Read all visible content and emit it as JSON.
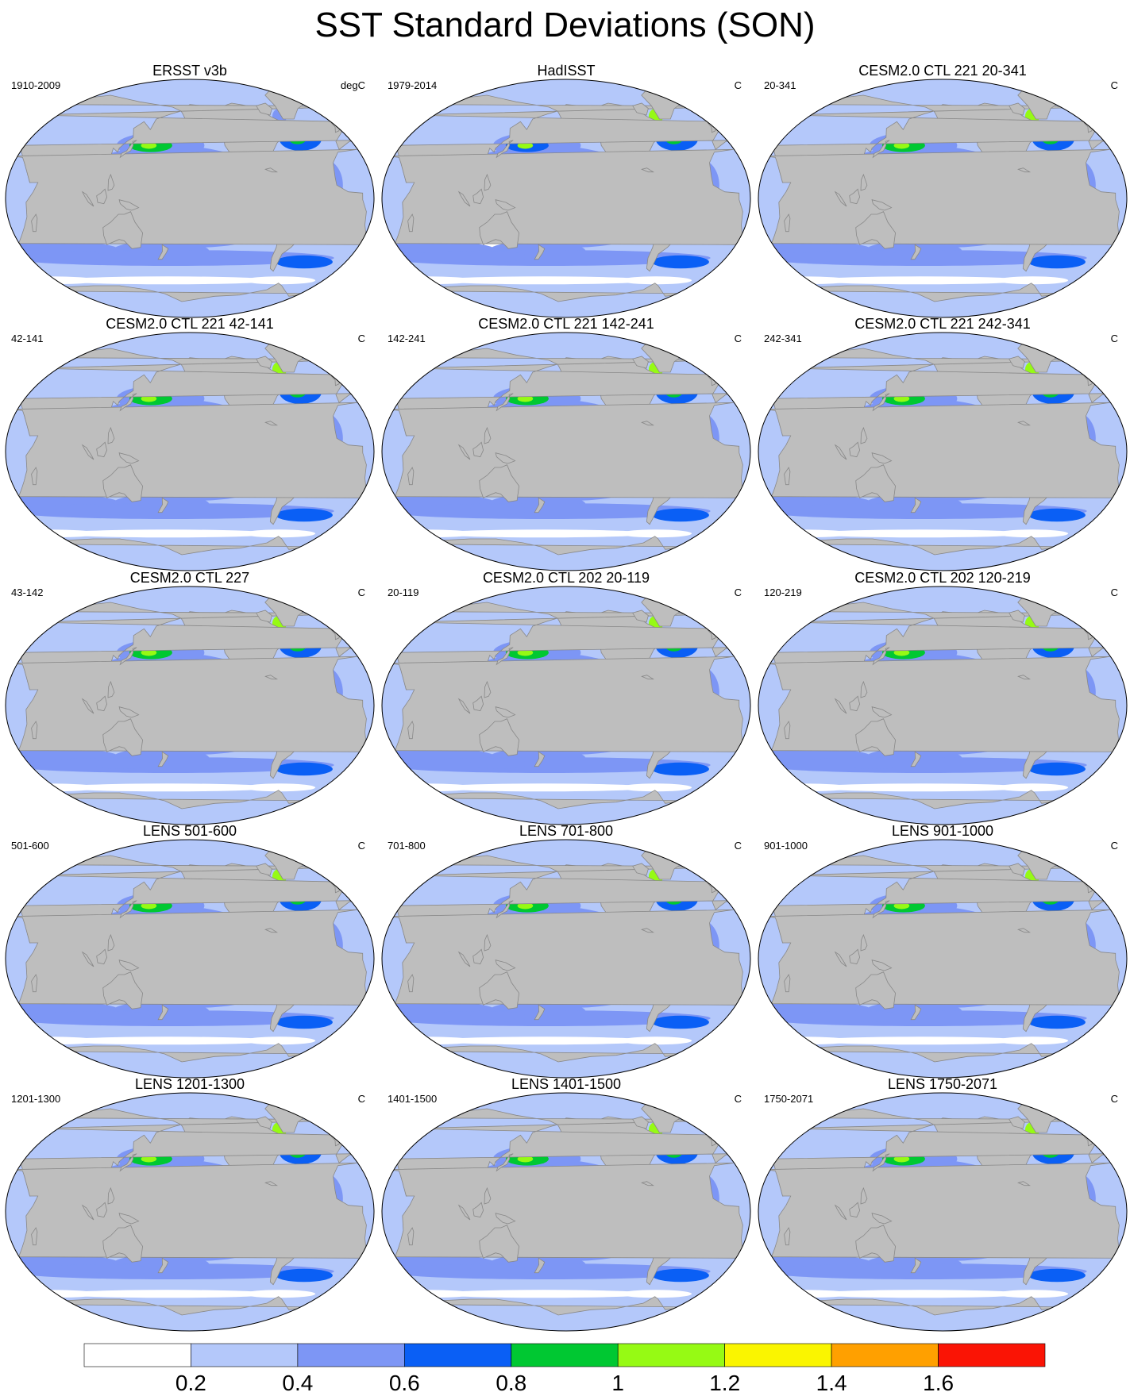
{
  "title": "SST Standard Deviations (SON)",
  "units_note": "degC",
  "panels": [
    {
      "title": "ERSST v3b",
      "left": "1910-2009",
      "right": "degC",
      "variant": "obs1",
      "amp": 0.9
    },
    {
      "title": "HadISST",
      "left": "1979-2014",
      "right": "C",
      "variant": "obs2",
      "amp": 0.85
    },
    {
      "title": "CESM2.0 CTL 221 20-341",
      "left": "20-341",
      "right": "C",
      "variant": "model",
      "amp": 1.55
    },
    {
      "title": "CESM2.0 CTL 221 42-141",
      "left": "42-141",
      "right": "C",
      "variant": "model",
      "amp": 1.6
    },
    {
      "title": "CESM2.0 CTL 221 142-241",
      "left": "142-241",
      "right": "C",
      "variant": "model",
      "amp": 1.65
    },
    {
      "title": "CESM2.0 CTL 221 242-341",
      "left": "242-341",
      "right": "C",
      "variant": "model",
      "amp": 1.4
    },
    {
      "title": "CESM2.0 CTL 227",
      "left": "43-142",
      "right": "C",
      "variant": "model",
      "amp": 1.7
    },
    {
      "title": "CESM2.0 CTL 202 20-119",
      "left": "20-119",
      "right": "C",
      "variant": "model",
      "amp": 1.65
    },
    {
      "title": "CESM2.0 CTL 202 120-219",
      "left": "120-219",
      "right": "C",
      "variant": "model",
      "amp": 1.5
    },
    {
      "title": "LENS 501-600",
      "left": "501-600",
      "right": "C",
      "variant": "lens",
      "amp": 1.3
    },
    {
      "title": "LENS 701-800",
      "left": "701-800",
      "right": "C",
      "variant": "lens",
      "amp": 1.3
    },
    {
      "title": "LENS 901-1000",
      "left": "901-1000",
      "right": "C",
      "variant": "lens",
      "amp": 1.2
    },
    {
      "title": "LENS 1201-1300",
      "left": "1201-1300",
      "right": "C",
      "variant": "lens",
      "amp": 1.2
    },
    {
      "title": "LENS 1401-1500",
      "left": "1401-1500",
      "right": "C",
      "variant": "lens",
      "amp": 1.3
    },
    {
      "title": "LENS 1750-2071",
      "left": "1750-2071",
      "right": "C",
      "variant": "lens",
      "amp": 1.25
    }
  ],
  "colorbar": {
    "colors": [
      "#ffffff",
      "#b4c8fa",
      "#7d96f5",
      "#0a5ff5",
      "#00c832",
      "#96fa14",
      "#faf500",
      "#ffa000",
      "#fa1405"
    ],
    "labels": [
      "0.2",
      "0.4",
      "0.6",
      "0.8",
      "1",
      "1.2",
      "1.4",
      "1.6"
    ]
  },
  "colors": {
    "land": "#bebebe",
    "coast": "#888888",
    "ocean_base": "#b4c8fa"
  }
}
